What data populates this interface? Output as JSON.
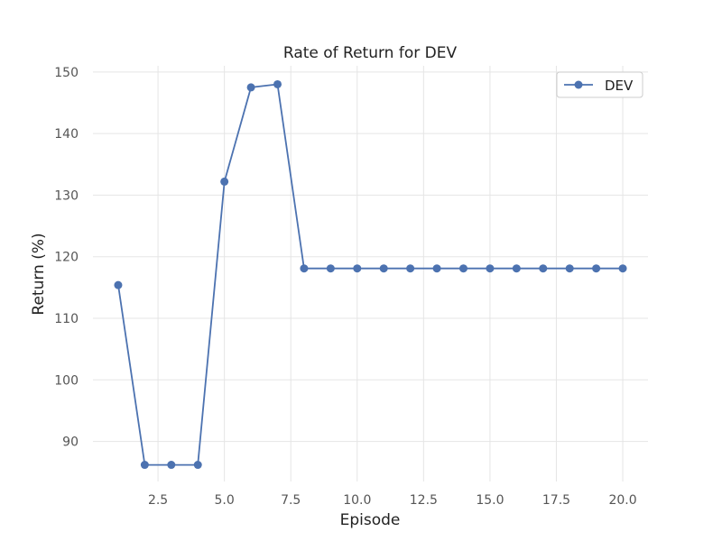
{
  "chart_data": {
    "type": "line",
    "title": "Rate of Return for DEV",
    "xlabel": "Episode",
    "ylabel": "Return (%)",
    "xlim": [
      0.05,
      20.95
    ],
    "ylim": [
      83.5,
      151
    ],
    "xticks": [
      2.5,
      5.0,
      7.5,
      10.0,
      12.5,
      15.0,
      17.5,
      20.0
    ],
    "xtick_labels": [
      "2.5",
      "5.0",
      "7.5",
      "10.0",
      "12.5",
      "15.0",
      "17.5",
      "20.0"
    ],
    "yticks": [
      90,
      100,
      110,
      120,
      130,
      140,
      150
    ],
    "ytick_labels": [
      "90",
      "100",
      "110",
      "120",
      "130",
      "140",
      "150"
    ],
    "grid": true,
    "legend_position": "top-right",
    "series": [
      {
        "name": "DEV",
        "color": "#4c72b0",
        "marker": "circle",
        "x": [
          1,
          2,
          3,
          4,
          5,
          6,
          7,
          8,
          9,
          10,
          11,
          12,
          13,
          14,
          15,
          16,
          17,
          18,
          19,
          20
        ],
        "y": [
          115.4,
          86.2,
          86.2,
          86.2,
          132.2,
          147.5,
          148.0,
          118.1,
          118.1,
          118.1,
          118.1,
          118.1,
          118.1,
          118.1,
          118.1,
          118.1,
          118.1,
          118.1,
          118.1,
          118.1
        ]
      }
    ]
  }
}
